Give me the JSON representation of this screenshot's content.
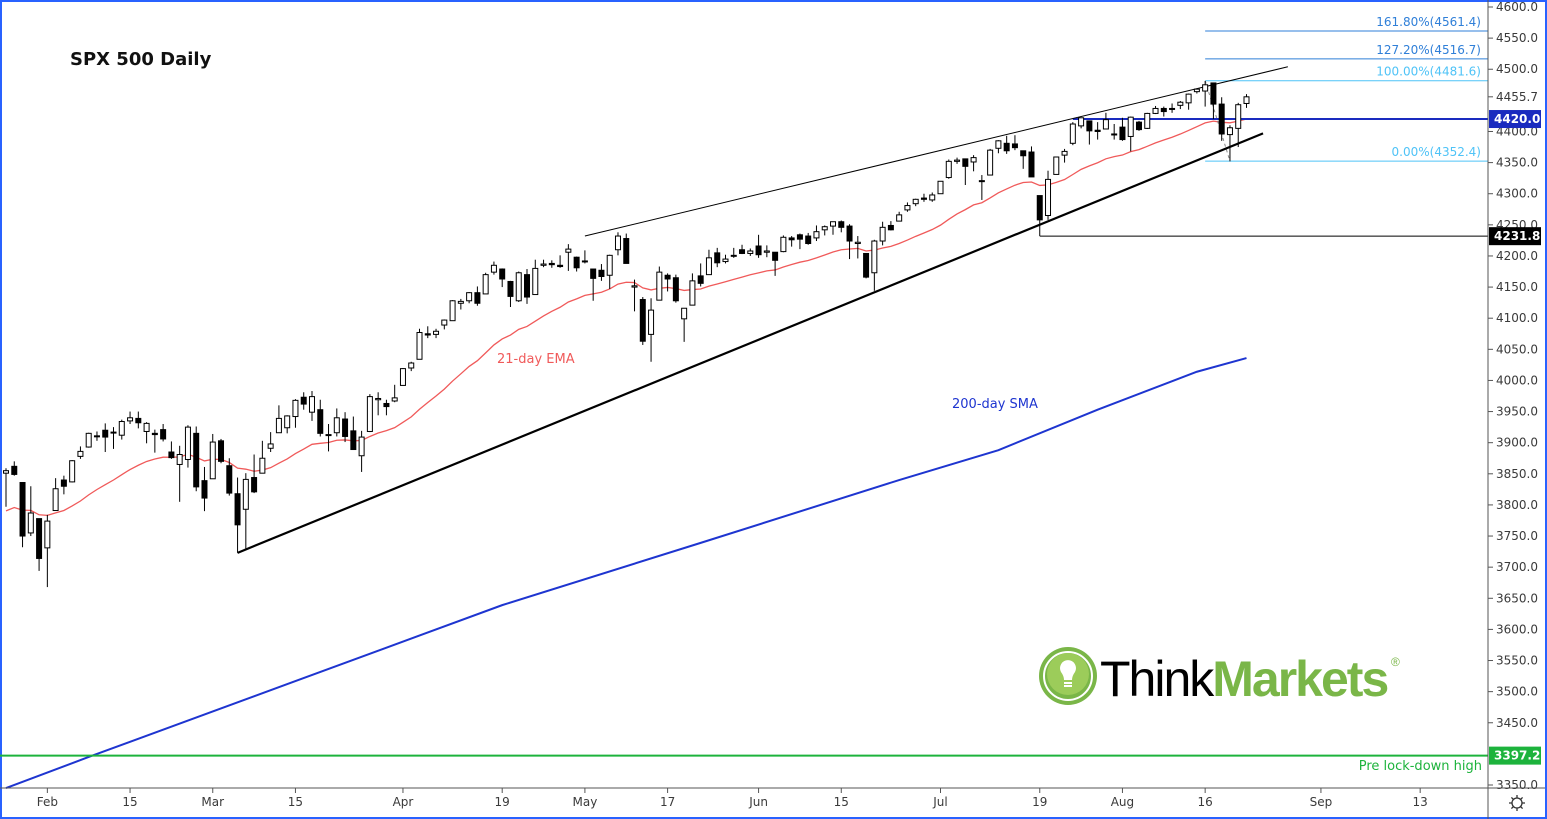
{
  "chart_data": {
    "type": "candlestick",
    "title": "SPX 500 Daily",
    "ylim": [
      3350,
      4600
    ],
    "y_ticks": [
      4600,
      4550,
      4500,
      4400,
      4350,
      4300,
      4250,
      4200,
      4150,
      4100,
      4050,
      4000,
      3950,
      3900,
      3850,
      3800,
      3750,
      3700,
      3650,
      3600,
      3550,
      3500,
      3450,
      3350
    ],
    "x_ticks": [
      "Feb",
      "15",
      "Mar",
      "15",
      "Apr",
      "19",
      "May",
      "17",
      "Jun",
      "15",
      "Jul",
      "19",
      "Aug",
      "16",
      "Sep",
      "13"
    ],
    "grid": false,
    "candles": [
      [
        "2021-01-25",
        3851,
        3859,
        3797,
        3855
      ],
      [
        "2021-01-26",
        3862,
        3870,
        3847,
        3849
      ],
      [
        "2021-01-27",
        3836,
        3836,
        3732,
        3750
      ],
      [
        "2021-01-28",
        3755,
        3830,
        3750,
        3787
      ],
      [
        "2021-01-29",
        3778,
        3778,
        3694,
        3714
      ],
      [
        "2021-02-01",
        3731,
        3784,
        3668,
        3774
      ],
      [
        "2021-02-02",
        3791,
        3843,
        3791,
        3826
      ],
      [
        "2021-02-03",
        3840,
        3847,
        3817,
        3830
      ],
      [
        "2021-02-04",
        3837,
        3872,
        3836,
        3871
      ],
      [
        "2021-02-05",
        3878,
        3894,
        3874,
        3886
      ],
      [
        "2021-02-08",
        3893,
        3916,
        3892,
        3915
      ],
      [
        "2021-02-09",
        3910,
        3918,
        3903,
        3911
      ],
      [
        "2021-02-10",
        3920,
        3931,
        3885,
        3909
      ],
      [
        "2021-02-11",
        3917,
        3925,
        3890,
        3916
      ],
      [
        "2021-02-12",
        3912,
        3937,
        3905,
        3934
      ],
      [
        "2021-02-15",
        3935,
        3950,
        3930,
        3940
      ],
      [
        "2021-02-16",
        3939,
        3950,
        3923,
        3932
      ],
      [
        "2021-02-17",
        3918,
        3933,
        3899,
        3931
      ],
      [
        "2021-02-18",
        3915,
        3921,
        3884,
        3913
      ],
      [
        "2021-02-19",
        3921,
        3930,
        3902,
        3906
      ],
      [
        "2021-02-22",
        3885,
        3902,
        3874,
        3876
      ],
      [
        "2021-02-23",
        3865,
        3895,
        3805,
        3881
      ],
      [
        "2021-02-24",
        3873,
        3928,
        3860,
        3925
      ],
      [
        "2021-02-25",
        3915,
        3926,
        3822,
        3829
      ],
      [
        "2021-02-26",
        3839,
        3861,
        3790,
        3811
      ],
      [
        "2021-03-01",
        3842,
        3914,
        3842,
        3901
      ],
      [
        "2021-03-02",
        3903,
        3906,
        3867,
        3870
      ],
      [
        "2021-03-03",
        3863,
        3875,
        3815,
        3819
      ],
      [
        "2021-03-04",
        3818,
        3844,
        3723,
        3768
      ],
      [
        "2021-03-05",
        3793,
        3851,
        3730,
        3841
      ],
      [
        "2021-03-08",
        3844,
        3881,
        3819,
        3821
      ],
      [
        "2021-03-09",
        3851,
        3903,
        3851,
        3875
      ],
      [
        "2021-03-10",
        3891,
        3917,
        3885,
        3898
      ],
      [
        "2021-03-11",
        3916,
        3960,
        3916,
        3939
      ],
      [
        "2021-03-12",
        3924,
        3944,
        3915,
        3943
      ],
      [
        "2021-03-15",
        3942,
        3970,
        3924,
        3968
      ],
      [
        "2021-03-16",
        3973,
        3981,
        3953,
        3962
      ],
      [
        "2021-03-17",
        3949,
        3983,
        3935,
        3974
      ],
      [
        "2021-03-18",
        3953,
        3969,
        3910,
        3915
      ],
      [
        "2021-03-19",
        3913,
        3930,
        3886,
        3913
      ],
      [
        "2021-03-22",
        3916,
        3955,
        3910,
        3940
      ],
      [
        "2021-03-23",
        3938,
        3949,
        3901,
        3910
      ],
      [
        "2021-03-24",
        3919,
        3942,
        3889,
        3889
      ],
      [
        "2021-03-25",
        3879,
        3919,
        3853,
        3909
      ],
      [
        "2021-03-26",
        3918,
        3978,
        3917,
        3974
      ],
      [
        "2021-03-29",
        3969,
        3981,
        3944,
        3971
      ],
      [
        "2021-03-30",
        3963,
        3969,
        3944,
        3958
      ],
      [
        "2021-03-31",
        3967,
        3993,
        3965,
        3972
      ],
      [
        "2021-04-01",
        3992,
        4020,
        3992,
        4019
      ],
      [
        "2021-04-02",
        4020,
        4030,
        4015,
        4028
      ],
      [
        "2021-04-05",
        4034,
        4083,
        4034,
        4077
      ],
      [
        "2021-04-06",
        4075,
        4087,
        4068,
        4073
      ],
      [
        "2021-04-07",
        4074,
        4083,
        4068,
        4079
      ],
      [
        "2021-04-08",
        4089,
        4098,
        4082,
        4097
      ],
      [
        "2021-04-09",
        4096,
        4129,
        4096,
        4128
      ],
      [
        "2021-04-12",
        4124,
        4131,
        4114,
        4127
      ],
      [
        "2021-04-13",
        4128,
        4142,
        4124,
        4141
      ],
      [
        "2021-04-14",
        4141,
        4151,
        4120,
        4124
      ],
      [
        "2021-04-15",
        4139,
        4173,
        4139,
        4170
      ],
      [
        "2021-04-16",
        4174,
        4191,
        4170,
        4185
      ],
      [
        "2021-04-19",
        4179,
        4180,
        4150,
        4163
      ],
      [
        "2021-04-20",
        4159,
        4160,
        4118,
        4135
      ],
      [
        "2021-04-21",
        4128,
        4175,
        4126,
        4173
      ],
      [
        "2021-04-22",
        4170,
        4179,
        4123,
        4134
      ],
      [
        "2021-04-23",
        4138,
        4194,
        4138,
        4180
      ],
      [
        "2021-04-26",
        4185,
        4194,
        4182,
        4187
      ],
      [
        "2021-04-27",
        4188,
        4193,
        4181,
        4186
      ],
      [
        "2021-04-28",
        4185,
        4201,
        4181,
        4183
      ],
      [
        "2021-04-29",
        4206,
        4219,
        4176,
        4211
      ],
      [
        "2021-04-30",
        4198,
        4199,
        4175,
        4181
      ],
      [
        "2021-05-03",
        4191,
        4209,
        4188,
        4192
      ],
      [
        "2021-05-04",
        4179,
        4179,
        4128,
        4164
      ],
      [
        "2021-05-05",
        4177,
        4187,
        4160,
        4167
      ],
      [
        "2021-05-06",
        4169,
        4202,
        4147,
        4201
      ],
      [
        "2021-05-07",
        4210,
        4238,
        4201,
        4232
      ],
      [
        "2021-05-10",
        4228,
        4236,
        4188,
        4188
      ],
      [
        "2021-05-11",
        4150,
        4162,
        4111,
        4152
      ],
      [
        "2021-05-12",
        4130,
        4134,
        4057,
        4063
      ],
      [
        "2021-05-13",
        4074,
        4132,
        4030,
        4113
      ],
      [
        "2021-05-14",
        4129,
        4183,
        4129,
        4174
      ],
      [
        "2021-05-17",
        4169,
        4172,
        4143,
        4163
      ],
      [
        "2021-05-18",
        4165,
        4170,
        4125,
        4128
      ],
      [
        "2021-05-19",
        4099,
        4116,
        4062,
        4116
      ],
      [
        "2021-05-20",
        4121,
        4172,
        4121,
        4160
      ],
      [
        "2021-05-21",
        4168,
        4188,
        4151,
        4156
      ],
      [
        "2021-05-24",
        4170,
        4210,
        4170,
        4197
      ],
      [
        "2021-05-25",
        4205,
        4213,
        4182,
        4189
      ],
      [
        "2021-05-26",
        4191,
        4202,
        4188,
        4195
      ],
      [
        "2021-05-27",
        4201,
        4213,
        4197,
        4200
      ],
      [
        "2021-05-28",
        4210,
        4218,
        4203,
        4204
      ],
      [
        "2021-05-31",
        4204,
        4212,
        4200,
        4208
      ],
      [
        "2021-06-01",
        4216,
        4234,
        4197,
        4202
      ],
      [
        "2021-06-02",
        4206,
        4217,
        4198,
        4208
      ],
      [
        "2021-06-03",
        4206,
        4206,
        4168,
        4193
      ],
      [
        "2021-06-04",
        4207,
        4233,
        4206,
        4230
      ],
      [
        "2021-06-07",
        4229,
        4232,
        4215,
        4226
      ],
      [
        "2021-06-08",
        4234,
        4236,
        4211,
        4227
      ],
      [
        "2021-06-09",
        4232,
        4237,
        4218,
        4220
      ],
      [
        "2021-06-10",
        4229,
        4249,
        4224,
        4239
      ],
      [
        "2021-06-11",
        4242,
        4249,
        4233,
        4247
      ],
      [
        "2021-06-14",
        4248,
        4255,
        4234,
        4255
      ],
      [
        "2021-06-15",
        4255,
        4257,
        4238,
        4246
      ],
      [
        "2021-06-16",
        4248,
        4251,
        4195,
        4224
      ],
      [
        "2021-06-17",
        4220,
        4232,
        4196,
        4222
      ],
      [
        "2021-06-18",
        4204,
        4204,
        4164,
        4166
      ],
      [
        "2021-06-21",
        4173,
        4226,
        4144,
        4224
      ],
      [
        "2021-06-22",
        4224,
        4255,
        4217,
        4246
      ],
      [
        "2021-06-23",
        4249,
        4256,
        4241,
        4242
      ],
      [
        "2021-06-24",
        4256,
        4271,
        4256,
        4266
      ],
      [
        "2021-06-25",
        4274,
        4286,
        4271,
        4281
      ],
      [
        "2021-06-28",
        4284,
        4292,
        4280,
        4291
      ],
      [
        "2021-06-29",
        4293,
        4300,
        4287,
        4291
      ],
      [
        "2021-06-30",
        4290,
        4302,
        4287,
        4298
      ],
      [
        "2021-07-01",
        4300,
        4320,
        4300,
        4320
      ],
      [
        "2021-07-02",
        4326,
        4355,
        4324,
        4352
      ],
      [
        "2021-07-05",
        4352,
        4358,
        4348,
        4354
      ],
      [
        "2021-07-06",
        4356,
        4356,
        4314,
        4344
      ],
      [
        "2021-07-07",
        4351,
        4362,
        4336,
        4358
      ],
      [
        "2021-07-08",
        4321,
        4330,
        4290,
        4320
      ],
      [
        "2021-07-09",
        4330,
        4372,
        4330,
        4370
      ],
      [
        "2021-07-12",
        4373,
        4386,
        4365,
        4385
      ],
      [
        "2021-07-13",
        4381,
        4393,
        4364,
        4369
      ],
      [
        "2021-07-14",
        4380,
        4394,
        4370,
        4374
      ],
      [
        "2021-07-15",
        4369,
        4369,
        4340,
        4361
      ],
      [
        "2021-07-16",
        4367,
        4376,
        4327,
        4327
      ],
      [
        "2021-07-19",
        4297,
        4297,
        4232,
        4258
      ],
      [
        "2021-07-20",
        4265,
        4337,
        4258,
        4323
      ],
      [
        "2021-07-21",
        4331,
        4359,
        4331,
        4359
      ],
      [
        "2021-07-22",
        4362,
        4372,
        4350,
        4368
      ],
      [
        "2021-07-23",
        4381,
        4415,
        4378,
        4412
      ],
      [
        "2021-07-26",
        4409,
        4422,
        4405,
        4422
      ],
      [
        "2021-07-27",
        4417,
        4417,
        4379,
        4401
      ],
      [
        "2021-07-28",
        4402,
        4415,
        4387,
        4400
      ],
      [
        "2021-07-29",
        4404,
        4430,
        4404,
        4419
      ],
      [
        "2021-07-30",
        4396,
        4412,
        4387,
        4395
      ],
      [
        "2021-08-02",
        4407,
        4422,
        4385,
        4387
      ],
      [
        "2021-08-03",
        4392,
        4424,
        4368,
        4423
      ],
      [
        "2021-08-04",
        4415,
        4417,
        4401,
        4403
      ],
      [
        "2021-08-05",
        4405,
        4430,
        4404,
        4429
      ],
      [
        "2021-08-06",
        4429,
        4441,
        4428,
        4437
      ],
      [
        "2021-08-09",
        4437,
        4440,
        4424,
        4432
      ],
      [
        "2021-08-10",
        4437,
        4445,
        4430,
        4436
      ],
      [
        "2021-08-11",
        4442,
        4449,
        4436,
        4447
      ],
      [
        "2021-08-12",
        4446,
        4461,
        4435,
        4460
      ],
      [
        "2021-08-13",
        4464,
        4468,
        4461,
        4468
      ],
      [
        "2021-08-16",
        4465,
        4481,
        4440,
        4475
      ],
      [
        "2021-08-17",
        4478,
        4478,
        4420,
        4444
      ],
      [
        "2021-08-18",
        4444,
        4455,
        4385,
        4396
      ],
      [
        "2021-08-19",
        4395,
        4410,
        4352,
        4406
      ],
      [
        "2021-08-20",
        4405,
        4446,
        4375,
        4443
      ],
      [
        "2021-08-23",
        4445,
        4460,
        4438,
        4455.7
      ]
    ],
    "ema21": {
      "label": "21-day EMA",
      "color": "#f05a5a",
      "start_value": 3784
    },
    "sma200": {
      "label": "200-day SMA",
      "color": "#1e35d0",
      "points": [
        [
          "2021-01-25",
          3345
        ],
        [
          "2021-02-08",
          3395
        ],
        [
          "2021-03-15",
          3517
        ],
        [
          "2021-04-19",
          3639
        ],
        [
          "2021-05-21",
          3739
        ],
        [
          "2021-06-24",
          3840
        ],
        [
          "2021-07-12",
          3888
        ],
        [
          "2021-07-28",
          3953
        ],
        [
          "2021-08-13",
          4014
        ],
        [
          "2021-08-23",
          4036
        ]
      ]
    },
    "trendlines": [
      {
        "from": [
          "2021-03-04",
          3723
        ],
        "to": [
          "2021-08-25",
          4397
        ],
        "color": "#000000",
        "style": "thick"
      },
      {
        "from": [
          "2021-05-03",
          4232
        ],
        "to": [
          "2021-08-30",
          4504
        ],
        "color": "#000000",
        "style": "thin"
      }
    ],
    "fibonacci": {
      "from_date": "2021-08-16",
      "levels": [
        {
          "text": "161.80%(4561.4)",
          "value": 4561.4,
          "color": "#2f7fd8"
        },
        {
          "text": "127.20%(4516.7)",
          "value": 4516.7,
          "color": "#2f7fd8"
        },
        {
          "text": "100.00%(4481.6)",
          "value": 4481.6,
          "color": "#4fc3f7"
        },
        {
          "text": "0.00%(4352.4)",
          "value": 4352.4,
          "color": "#4fc3f7"
        }
      ],
      "swing": [
        [
          "2021-08-16",
          4481.6
        ],
        [
          "2021-08-19",
          4352.4
        ]
      ]
    },
    "levels": [
      {
        "value": 4420.0,
        "text": "4420.0",
        "color": "#1a2bbf",
        "from_date": "2021-07-23"
      },
      {
        "value": 4231.8,
        "text": "4231.8",
        "color": "#000000",
        "from_date": "2021-07-19"
      },
      {
        "value": 3397.2,
        "text": "3397.2",
        "color": "#1db33c",
        "from_date": "2021-01-25",
        "annotation": "Pre lock-down high"
      }
    ],
    "last_price": {
      "value": 4455.7,
      "text": "4455.7"
    }
  },
  "logo": {
    "think": "ThinkMarkets",
    "part1": "Think",
    "part2": "Markets",
    "registered": "®"
  },
  "icons": {
    "settings": "gear-icon"
  }
}
